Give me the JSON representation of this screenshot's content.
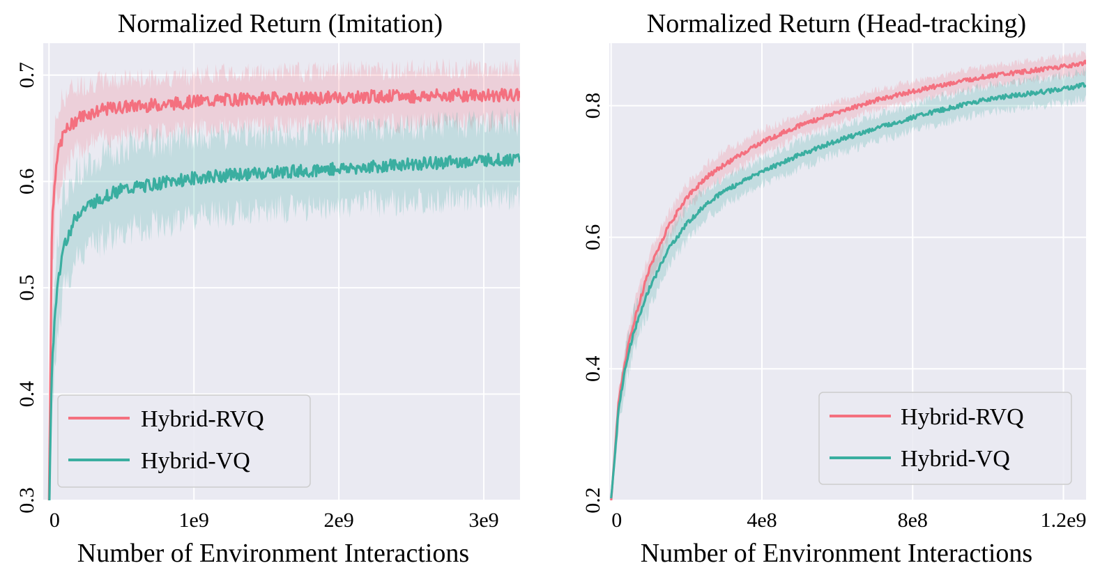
{
  "colors": {
    "plot_bg": "#eaeaf2",
    "grid": "#ffffff",
    "rvq": "#f4707f",
    "vq": "#3aaea0",
    "legend_bg": "#eaeaf2",
    "legend_border": "#cccccc"
  },
  "chart_data": [
    {
      "type": "line",
      "title": "Normalized Return (Imitation)",
      "xlabel": "Number of Environment Interactions",
      "ylabel": "",
      "xlim": [
        -40000000,
        3250000000
      ],
      "ylim": [
        0.3,
        0.73
      ],
      "xticks": [
        0,
        1000000000,
        2000000000,
        3000000000
      ],
      "xtick_labels": [
        "0",
        "1e9",
        "2e9",
        "3e9"
      ],
      "yticks": [
        0.3,
        0.4,
        0.5,
        0.6,
        0.7
      ],
      "ytick_labels": [
        "0.3",
        "0.4",
        "0.5",
        "0.6",
        "0.7"
      ],
      "grid": true,
      "legend_position": "lower-left",
      "series": [
        {
          "name": "Hybrid-RVQ",
          "color": "#f4707f",
          "x": [
            0,
            20000000,
            50000000,
            100000000,
            200000000,
            300000000,
            400000000,
            500000000,
            750000000,
            1000000000,
            1250000000,
            1500000000,
            1750000000,
            2000000000,
            2250000000,
            2500000000,
            2750000000,
            3000000000,
            3250000000
          ],
          "y": [
            0.3,
            0.56,
            0.62,
            0.645,
            0.66,
            0.665,
            0.668,
            0.67,
            0.672,
            0.675,
            0.677,
            0.678,
            0.678,
            0.679,
            0.68,
            0.68,
            0.681,
            0.681,
            0.681
          ],
          "band": [
            0.05,
            0.045,
            0.04,
            0.035,
            0.03,
            0.028,
            0.027,
            0.026,
            0.025,
            0.025,
            0.025,
            0.025,
            0.025,
            0.025,
            0.025,
            0.025,
            0.025,
            0.025,
            0.025
          ]
        },
        {
          "name": "Hybrid-VQ",
          "color": "#3aaea0",
          "x": [
            0,
            20000000,
            50000000,
            100000000,
            200000000,
            300000000,
            400000000,
            500000000,
            750000000,
            1000000000,
            1250000000,
            1500000000,
            1750000000,
            2000000000,
            2250000000,
            2500000000,
            2750000000,
            3000000000,
            3250000000
          ],
          "y": [
            0.28,
            0.43,
            0.49,
            0.54,
            0.57,
            0.58,
            0.587,
            0.592,
            0.598,
            0.603,
            0.606,
            0.608,
            0.61,
            0.612,
            0.614,
            0.616,
            0.618,
            0.62,
            0.621
          ],
          "band": [
            0.05,
            0.05,
            0.05,
            0.045,
            0.04,
            0.04,
            0.04,
            0.04,
            0.038,
            0.037,
            0.036,
            0.035,
            0.035,
            0.035,
            0.035,
            0.035,
            0.035,
            0.035,
            0.035
          ]
        }
      ]
    },
    {
      "type": "line",
      "title": "Normalized Return (Head-tracking)",
      "xlabel": "Number of Environment Interactions",
      "ylabel": "",
      "xlim": [
        -5000000,
        1260000000
      ],
      "ylim": [
        0.2,
        0.895
      ],
      "xticks": [
        0,
        400000000,
        800000000,
        1200000000
      ],
      "xtick_labels": [
        "0",
        "4e8",
        "8e8",
        "1.2e9"
      ],
      "yticks": [
        0.2,
        0.4,
        0.6,
        0.8
      ],
      "ytick_labels": [
        "0.2",
        "0.4",
        "0.6",
        "0.8"
      ],
      "grid": true,
      "legend_position": "lower-right",
      "series": [
        {
          "name": "Hybrid-RVQ",
          "color": "#f4707f",
          "x": [
            0,
            20000000,
            40000000,
            60000000,
            80000000,
            100000000,
            150000000,
            200000000,
            250000000,
            300000000,
            400000000,
            500000000,
            600000000,
            700000000,
            800000000,
            900000000,
            1000000000,
            1100000000,
            1200000000,
            1260000000
          ],
          "y": [
            0.2,
            0.35,
            0.42,
            0.47,
            0.51,
            0.55,
            0.615,
            0.66,
            0.69,
            0.71,
            0.745,
            0.77,
            0.79,
            0.808,
            0.822,
            0.834,
            0.845,
            0.852,
            0.86,
            0.865
          ],
          "band": [
            0.01,
            0.02,
            0.025,
            0.025,
            0.025,
            0.025,
            0.02,
            0.02,
            0.02,
            0.02,
            0.018,
            0.016,
            0.015,
            0.015,
            0.015,
            0.015,
            0.015,
            0.015,
            0.015,
            0.015
          ]
        },
        {
          "name": "Hybrid-VQ",
          "color": "#3aaea0",
          "x": [
            0,
            20000000,
            40000000,
            60000000,
            80000000,
            100000000,
            150000000,
            200000000,
            250000000,
            300000000,
            400000000,
            500000000,
            600000000,
            700000000,
            800000000,
            900000000,
            1000000000,
            1100000000,
            1200000000,
            1260000000
          ],
          "y": [
            0.2,
            0.34,
            0.41,
            0.455,
            0.49,
            0.52,
            0.58,
            0.62,
            0.65,
            0.67,
            0.7,
            0.725,
            0.747,
            0.765,
            0.782,
            0.797,
            0.81,
            0.818,
            0.825,
            0.832
          ],
          "band": [
            0.01,
            0.025,
            0.03,
            0.03,
            0.03,
            0.03,
            0.025,
            0.025,
            0.022,
            0.02,
            0.02,
            0.02,
            0.02,
            0.02,
            0.02,
            0.02,
            0.02,
            0.02,
            0.02,
            0.02
          ]
        }
      ]
    }
  ]
}
